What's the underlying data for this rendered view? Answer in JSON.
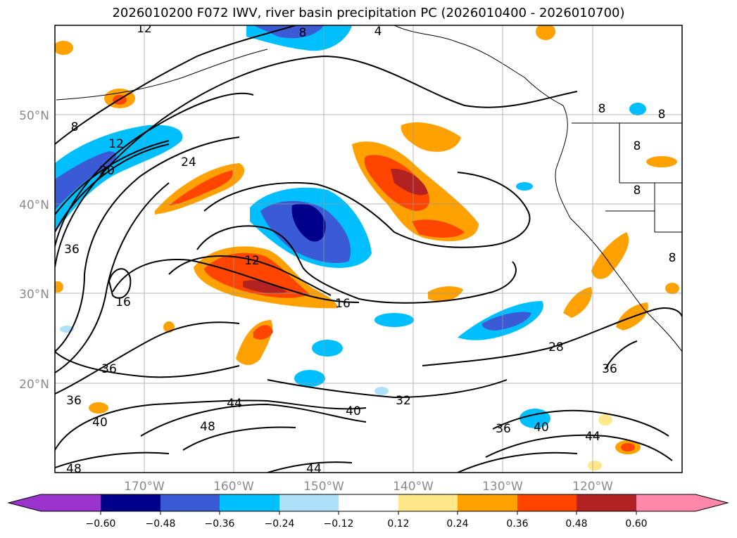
{
  "title": "2026010200 F072 IWV, river basin precipitation PC (2026010400 - 2026010700)",
  "map": {
    "lat_labels": [
      "50°N",
      "40°N",
      "30°N",
      "20°N"
    ],
    "lon_labels": [
      "170°W",
      "160°W",
      "150°W",
      "140°W",
      "130°W",
      "120°W"
    ],
    "contour_labels": [
      "12",
      "4",
      "8",
      "8",
      "8",
      "8",
      "8",
      "8",
      "8",
      "12",
      "20",
      "24",
      "36",
      "16",
      "12",
      "16",
      "36",
      "36",
      "40",
      "44",
      "48",
      "40",
      "32",
      "28",
      "36",
      "36",
      "40",
      "44",
      "48",
      "44"
    ],
    "land_color": "#ffffff",
    "contour_color": "#000000"
  },
  "colorbar": {
    "colors": [
      "#9933cc",
      "#00008b",
      "#3b5bd6",
      "#00bfff",
      "#aee0fa",
      "#ffffff",
      "#fee88a",
      "#ffa100",
      "#ff4500",
      "#b22222",
      "#ff88aa"
    ],
    "ticks": [
      "−0.60",
      "−0.48",
      "−0.36",
      "−0.24",
      "−0.12",
      "0.12",
      "0.24",
      "0.36",
      "0.48",
      "0.60"
    ]
  }
}
